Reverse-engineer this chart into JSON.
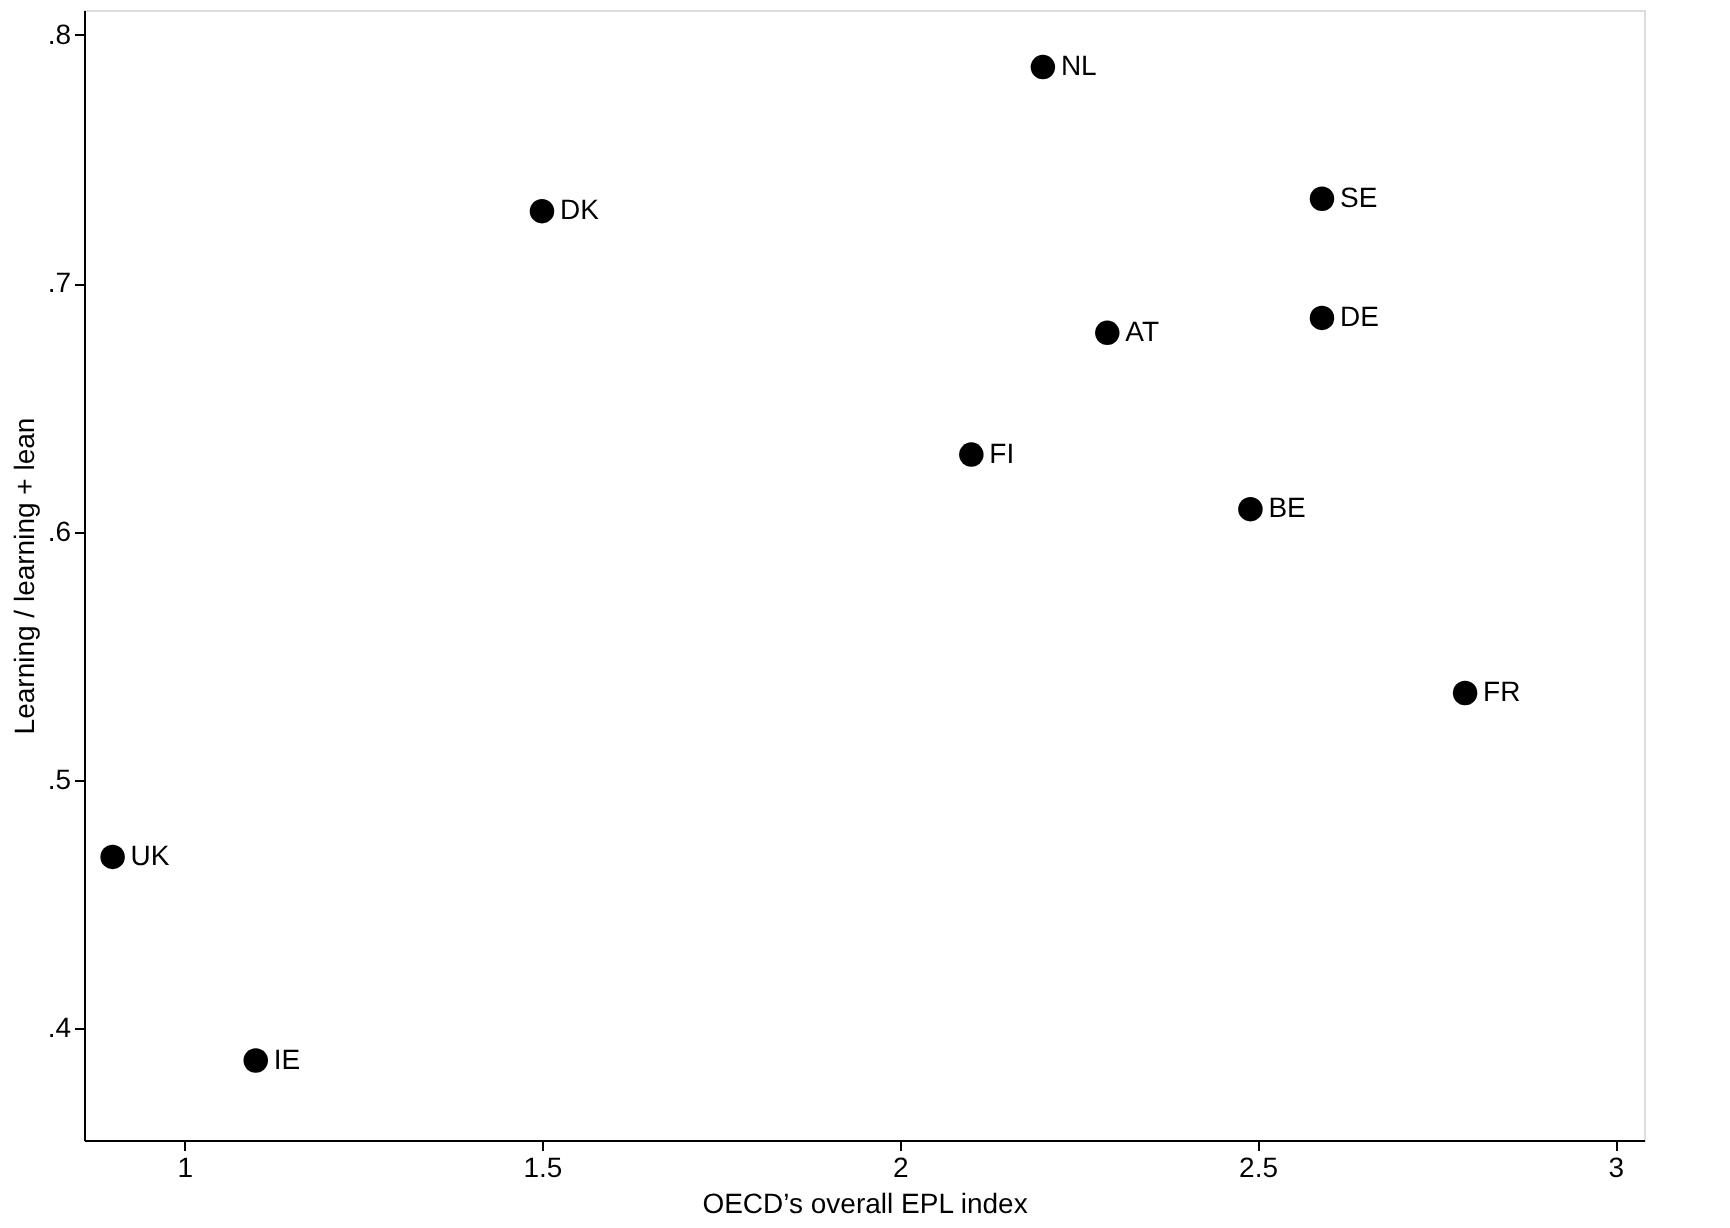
{
  "chart_data": {
    "type": "scatter",
    "xlabel": "OECD’s overall EPL index",
    "ylabel": "Learning / learning + lean",
    "x": [
      2.2,
      1.5,
      2.59,
      2.59,
      2.29,
      2.1,
      2.49,
      2.79,
      0.9,
      1.1
    ],
    "series": [
      {
        "color": "#000000",
        "values": [
          0.787,
          0.729,
          0.734,
          0.686,
          0.68,
          0.631,
          0.609,
          0.535,
          0.469,
          0.387
        ],
        "value_labels": [
          "NL",
          "DK",
          "SE",
          "DE",
          "AT",
          "FI",
          "BE",
          "FR",
          "UK",
          "IE"
        ]
      }
    ],
    "xlim": [
      0.86,
      3.04
    ],
    "ylim": [
      0.355,
      0.81
    ],
    "xticks": [
      1,
      1.5,
      2,
      2.5,
      3
    ],
    "yticks": [
      {
        "value": 0.4,
        "label": ".4"
      },
      {
        "value": 0.5,
        "label": ".5"
      },
      {
        "value": 0.6,
        "label": ".6"
      },
      {
        "value": 0.7,
        "label": ".7"
      },
      {
        "value": 0.8,
        "label": ".8"
      }
    ],
    "marker": "circle",
    "grid": false
  }
}
